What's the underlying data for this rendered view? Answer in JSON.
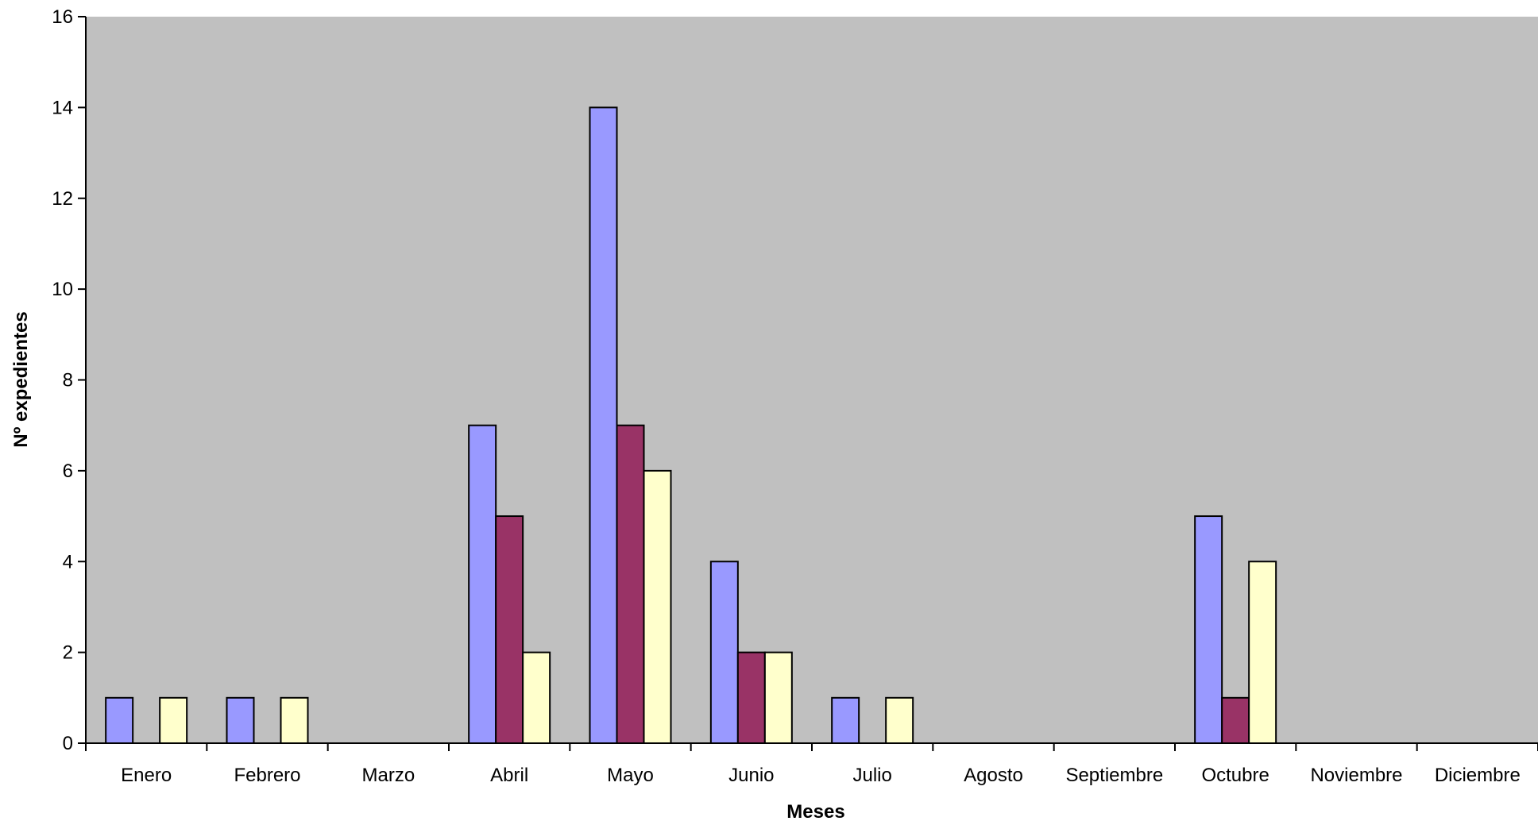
{
  "chart_data": {
    "type": "bar",
    "title": "",
    "xlabel": "Meses",
    "ylabel": "Nº expedientes",
    "ylim": [
      0,
      16
    ],
    "yticks": [
      "0",
      "2",
      "4",
      "6",
      "8",
      "10",
      "12",
      "14",
      "16"
    ],
    "categories": [
      "Enero",
      "Febrero",
      "Marzo",
      "Abril",
      "Mayo",
      "Junio",
      "Julio",
      "Agosto",
      "Septiembre",
      "Octubre",
      "Noviembre",
      "Diciembre"
    ],
    "series": [
      {
        "color": "#9999ff",
        "values": [
          1,
          1,
          0,
          7,
          14,
          4,
          1,
          0,
          0,
          5,
          0,
          0
        ]
      },
      {
        "color": "#993366",
        "values": [
          0,
          0,
          0,
          5,
          7,
          2,
          0,
          0,
          0,
          1,
          0,
          0
        ]
      },
      {
        "color": "#ffffcc",
        "values": [
          1,
          1,
          0,
          2,
          6,
          2,
          1,
          0,
          0,
          4,
          0,
          0
        ]
      }
    ],
    "plot_background": "#c0c0c0",
    "grid": false,
    "legend": "none"
  }
}
